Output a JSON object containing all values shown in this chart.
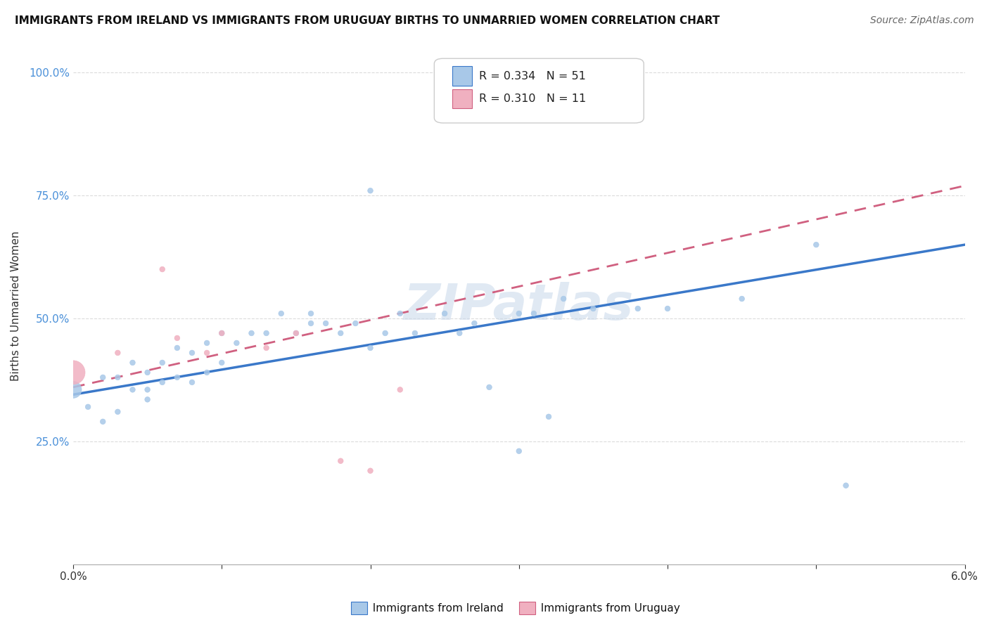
{
  "title": "IMMIGRANTS FROM IRELAND VS IMMIGRANTS FROM URUGUAY BIRTHS TO UNMARRIED WOMEN CORRELATION CHART",
  "source": "Source: ZipAtlas.com",
  "ylabel": "Births to Unmarried Women",
  "xlim": [
    0.0,
    0.06
  ],
  "ylim": [
    0.0,
    1.05
  ],
  "xticks": [
    0.0,
    0.01,
    0.02,
    0.03,
    0.04,
    0.05,
    0.06
  ],
  "xticklabels": [
    "0.0%",
    "",
    "",
    "",
    "",
    "",
    "6.0%"
  ],
  "yticks": [
    0.25,
    0.5,
    0.75,
    1.0
  ],
  "yticklabels": [
    "25.0%",
    "50.0%",
    "75.0%",
    "100.0%"
  ],
  "r_ireland": 0.334,
  "n_ireland": 51,
  "r_uruguay": 0.31,
  "n_uruguay": 11,
  "color_ireland": "#a8c8e8",
  "color_uruguay": "#f0b0c0",
  "line_color_ireland": "#3a78c9",
  "line_color_uruguay": "#d06080",
  "watermark_color": "#c8d8ea",
  "grid_color": "#cccccc",
  "background_color": "#ffffff",
  "ireland_line_x0": 0.0,
  "ireland_line_y0": 0.345,
  "ireland_line_x1": 0.06,
  "ireland_line_y1": 0.65,
  "uruguay_line_x0": 0.0,
  "uruguay_line_y0": 0.36,
  "uruguay_line_x1": 0.06,
  "uruguay_line_y1": 0.77,
  "ireland_pts_x": [
    0.0,
    0.001,
    0.002,
    0.002,
    0.003,
    0.003,
    0.004,
    0.004,
    0.005,
    0.005,
    0.005,
    0.006,
    0.006,
    0.007,
    0.007,
    0.008,
    0.008,
    0.009,
    0.009,
    0.01,
    0.01,
    0.011,
    0.012,
    0.013,
    0.014,
    0.015,
    0.016,
    0.016,
    0.017,
    0.018,
    0.019,
    0.02,
    0.021,
    0.022,
    0.023,
    0.025,
    0.026,
    0.027,
    0.03,
    0.031,
    0.033,
    0.035,
    0.038,
    0.04,
    0.045,
    0.05,
    0.052,
    0.02,
    0.03,
    0.032,
    0.028
  ],
  "ireland_pts_y": [
    0.355,
    0.32,
    0.29,
    0.38,
    0.31,
    0.38,
    0.355,
    0.41,
    0.335,
    0.39,
    0.355,
    0.37,
    0.41,
    0.38,
    0.44,
    0.37,
    0.43,
    0.39,
    0.45,
    0.41,
    0.47,
    0.45,
    0.47,
    0.47,
    0.51,
    0.47,
    0.49,
    0.51,
    0.49,
    0.47,
    0.49,
    0.44,
    0.47,
    0.51,
    0.47,
    0.51,
    0.47,
    0.49,
    0.51,
    0.51,
    0.54,
    0.52,
    0.52,
    0.52,
    0.54,
    0.65,
    0.16,
    0.76,
    0.23,
    0.3,
    0.36
  ],
  "ireland_pts_sizes": [
    300,
    30,
    30,
    30,
    30,
    30,
    30,
    30,
    30,
    30,
    30,
    30,
    30,
    30,
    30,
    30,
    30,
    30,
    30,
    30,
    30,
    30,
    30,
    30,
    30,
    30,
    30,
    30,
    30,
    30,
    30,
    30,
    30,
    30,
    30,
    30,
    30,
    30,
    30,
    30,
    30,
    30,
    30,
    30,
    30,
    30,
    30,
    30,
    30,
    30,
    30
  ],
  "uruguay_pts_x": [
    0.0,
    0.003,
    0.006,
    0.007,
    0.009,
    0.01,
    0.013,
    0.015,
    0.018,
    0.02,
    0.022
  ],
  "uruguay_pts_y": [
    0.39,
    0.43,
    0.6,
    0.46,
    0.43,
    0.47,
    0.44,
    0.47,
    0.21,
    0.19,
    0.355
  ],
  "uruguay_pts_sizes": [
    600,
    30,
    30,
    30,
    30,
    30,
    30,
    30,
    30,
    30,
    30
  ],
  "tick_color": "#4a90d9",
  "title_fontsize": 11,
  "source_fontsize": 10,
  "axis_label_fontsize": 11,
  "tick_fontsize": 11
}
